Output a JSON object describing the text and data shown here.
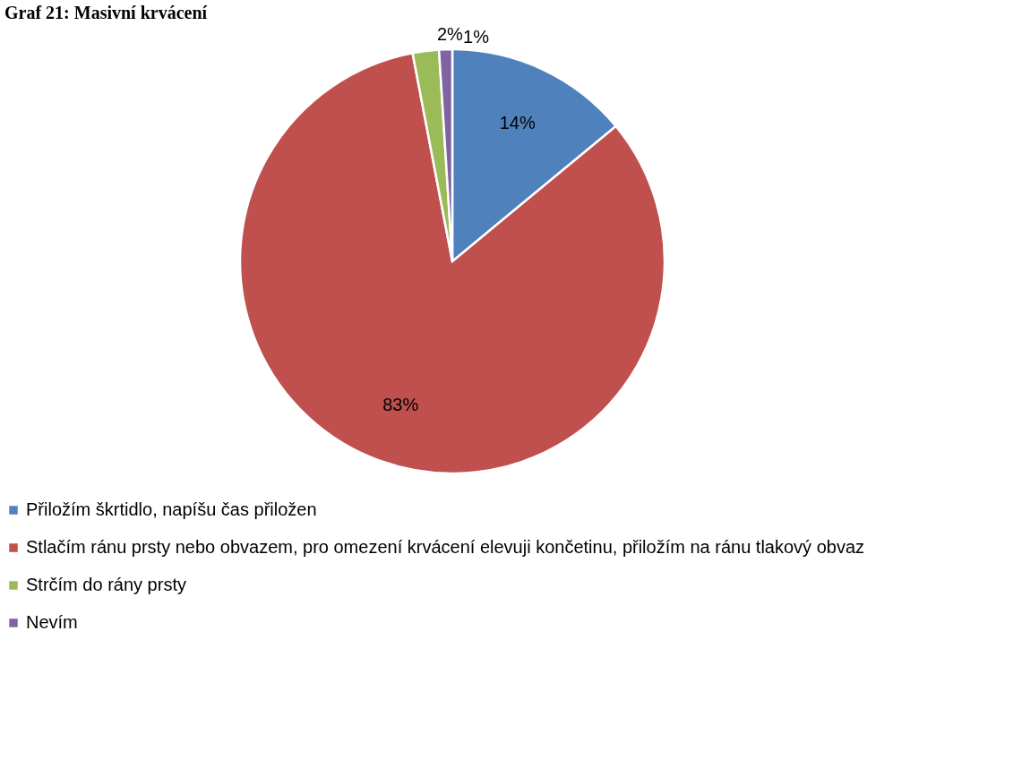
{
  "chart_data": {
    "type": "pie",
    "title": "Graf 21: Masivní krvácení",
    "categories": [
      "Přiložím škrtidlo, napíšu čas přiložen",
      "Stlačím ránu prsty nebo obvazem, pro omezení krvácení elevuji končetinu, přiložím na ránu tlakový obvaz",
      "Strčím do rány prsty",
      "Nevím"
    ],
    "values": [
      14,
      83,
      2,
      1
    ],
    "colors": [
      "#4f81bd",
      "#c0504d",
      "#9bbb59",
      "#8064a2"
    ],
    "value_labels": [
      "14%",
      "83%",
      "2%",
      "1%"
    ],
    "legend": "bottom"
  }
}
